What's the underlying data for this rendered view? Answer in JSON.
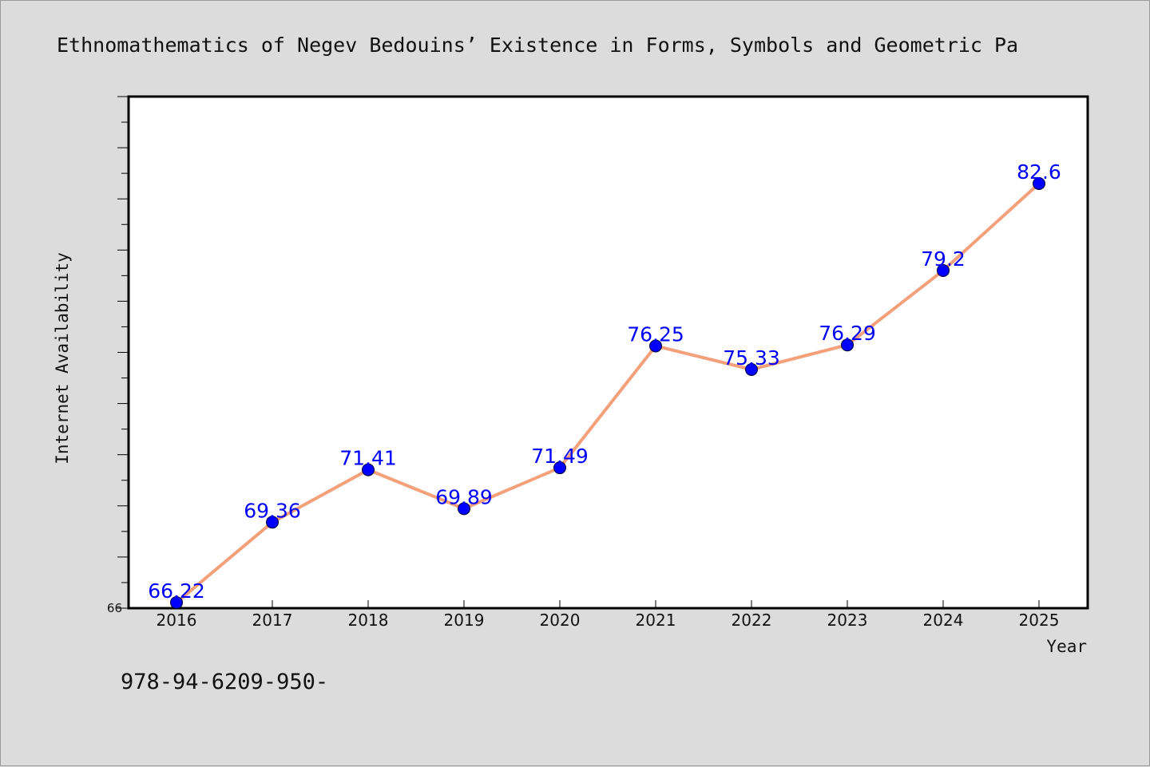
{
  "title": "Ethnomathematics of Negev Bedouins’ Existence in Forms, Symbols and Geometric Pa",
  "footer": "978-94-6209-950-",
  "colors": {
    "background": "#dcdcdc",
    "plot_background": "#ffffff",
    "line": "#f4a07a",
    "marker": "#0000ff",
    "data_label": "#0000ff"
  },
  "chart_data": {
    "type": "line",
    "title": "Ethnomathematics of Negev Bedouins’ Existence in Forms, Symbols and Geometric Pa",
    "xlabel": "Year",
    "ylabel": "Internet Availability",
    "categories": [
      "2016",
      "2017",
      "2018",
      "2019",
      "2020",
      "2021",
      "2022",
      "2023",
      "2024",
      "2025"
    ],
    "series": [
      {
        "values": [
          66.22,
          69.36,
          71.41,
          69.89,
          71.49,
          76.25,
          75.33,
          76.29,
          79.2,
          82.6
        ],
        "labels": [
          "66.22",
          "69.36",
          "71.41",
          "69.89",
          "71.49",
          "76.25",
          "75.33",
          "76.29",
          "79.2",
          "82.6"
        ]
      }
    ],
    "ylim": [
      66,
      86
    ],
    "y_tick_labels": [
      "66"
    ],
    "grid": false,
    "legend": "none"
  }
}
